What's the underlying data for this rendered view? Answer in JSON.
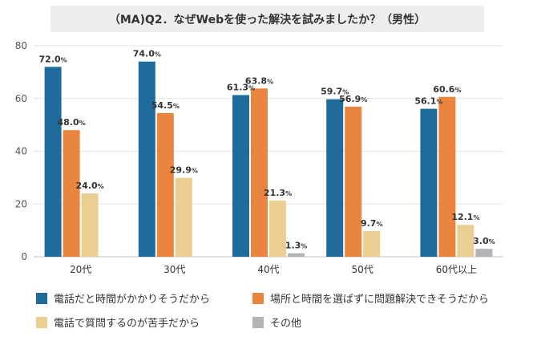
{
  "chart_data": {
    "type": "bar",
    "title": "（MA)Q2．なぜWebを使った解決を試みましたか？（男性）",
    "categories": [
      "20代",
      "30代",
      "40代",
      "50代",
      "60代以上"
    ],
    "series": [
      {
        "name": "電話だと時間がかかりそうだから",
        "color": "#1f6c9c",
        "values": [
          72.0,
          74.0,
          61.3,
          59.7,
          56.1
        ]
      },
      {
        "name": "場所と時間を選ばずに問題解決できそうだから",
        "color": "#ea8540",
        "values": [
          48.0,
          54.5,
          63.8,
          56.9,
          60.6
        ]
      },
      {
        "name": "電話で質問するのが苦手だから",
        "color": "#ebce92",
        "values": [
          24.0,
          29.9,
          21.3,
          9.7,
          12.1
        ]
      },
      {
        "name": "その他",
        "color": "#b3b3b3",
        "values": [
          null,
          null,
          1.3,
          null,
          3.0
        ]
      }
    ],
    "ylim": [
      0,
      80
    ],
    "yticks": [
      0,
      20,
      40,
      60,
      80
    ],
    "value_format": "%",
    "grid": true,
    "legend": "bottom"
  }
}
